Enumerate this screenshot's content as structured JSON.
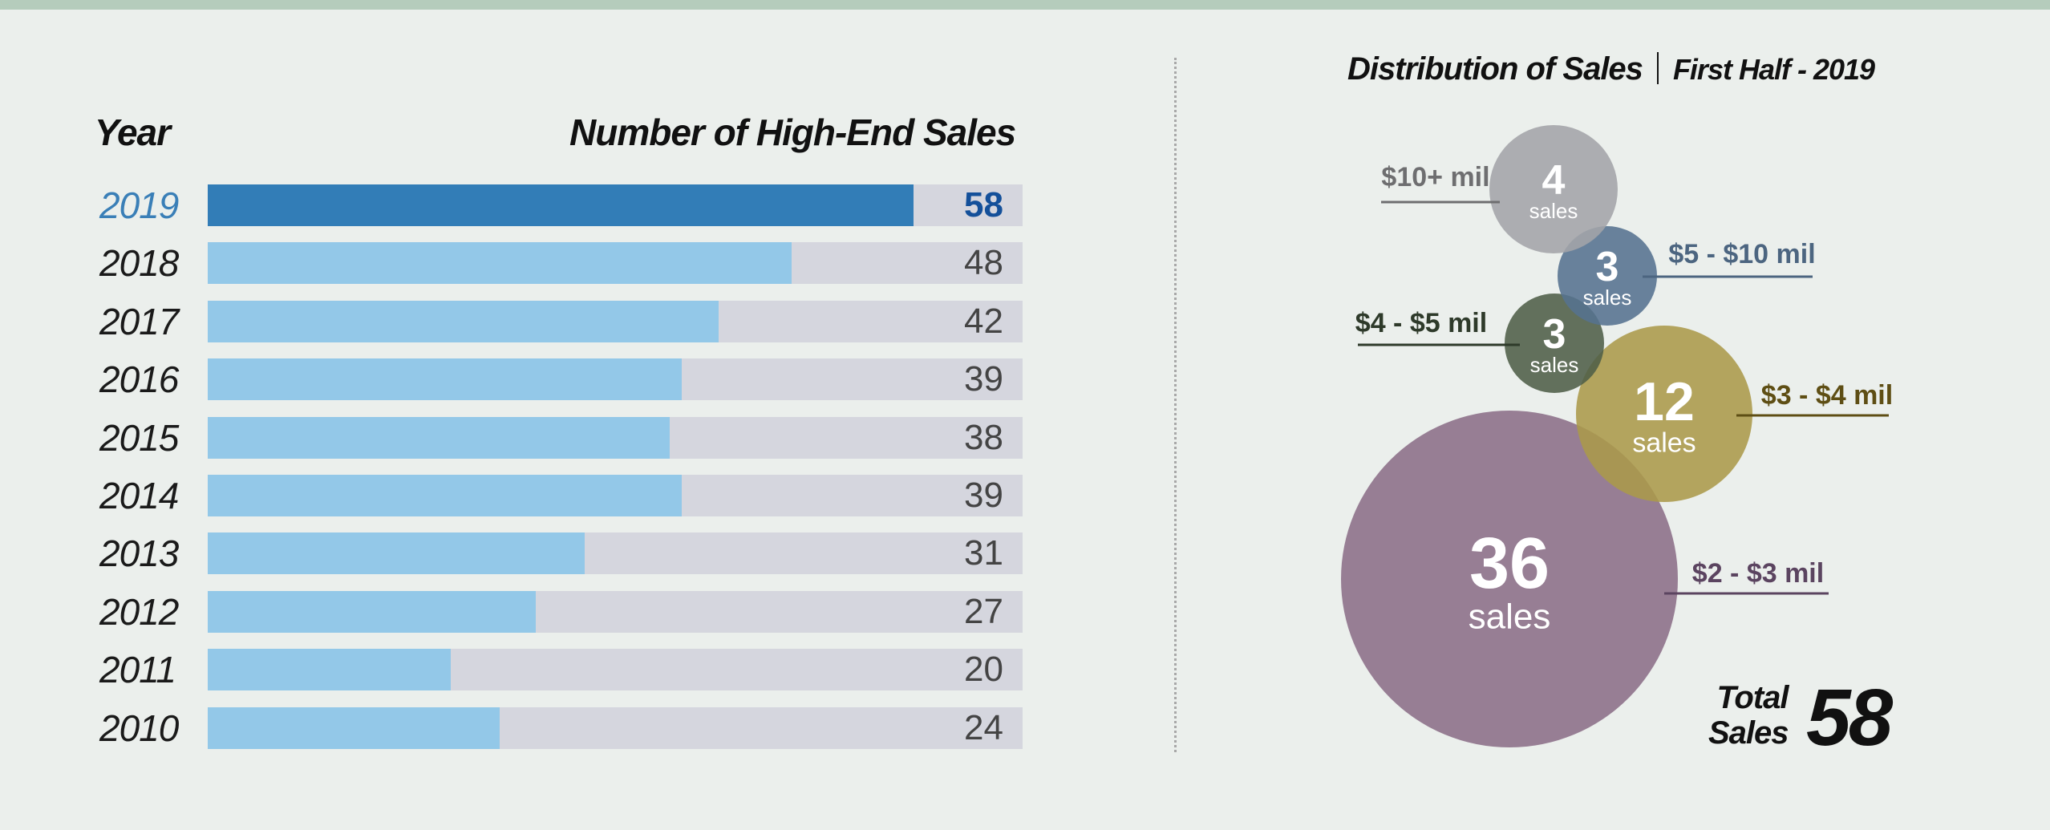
{
  "colors": {
    "background": "#ebefec",
    "bar_fill": "#93c8e8",
    "bar_highlight": "#327db7",
    "bar_track": "#d5d6de"
  },
  "chart_data": [
    {
      "type": "bar",
      "orientation": "horizontal",
      "xlabel": "Number of High-End Sales",
      "ylabel": "Year",
      "categories": [
        "2019",
        "2018",
        "2017",
        "2016",
        "2015",
        "2014",
        "2013",
        "2012",
        "2011",
        "2010"
      ],
      "values": [
        58,
        48,
        42,
        39,
        38,
        39,
        31,
        27,
        20,
        24
      ],
      "highlight": "2019",
      "xlim": [
        0,
        67
      ],
      "grid": false
    },
    {
      "type": "bubble",
      "title": "Distribution of Sales",
      "subtitle": "First Half - 2019",
      "unit_label": "sales",
      "bubbles": [
        {
          "label": "$10+ mil",
          "value": 4,
          "color": "#a3a4a8",
          "label_color": "#6e6e70"
        },
        {
          "label": "$5 - $10 mil",
          "value": 3,
          "color": "#55728f",
          "label_color": "#4c6580"
        },
        {
          "label": "$4 - $5 mil",
          "value": 3,
          "color": "#4e5e48",
          "label_color": "#2e3a2a"
        },
        {
          "label": "$3 - $4 mil",
          "value": 12,
          "color": "#ab9a4a",
          "label_color": "#5e4e14"
        },
        {
          "label": "$2 - $3 mil",
          "value": 36,
          "color": "#8b6e88",
          "label_color": "#5b4460"
        }
      ],
      "total_label": [
        "Total",
        "Sales"
      ],
      "total": 58
    }
  ]
}
